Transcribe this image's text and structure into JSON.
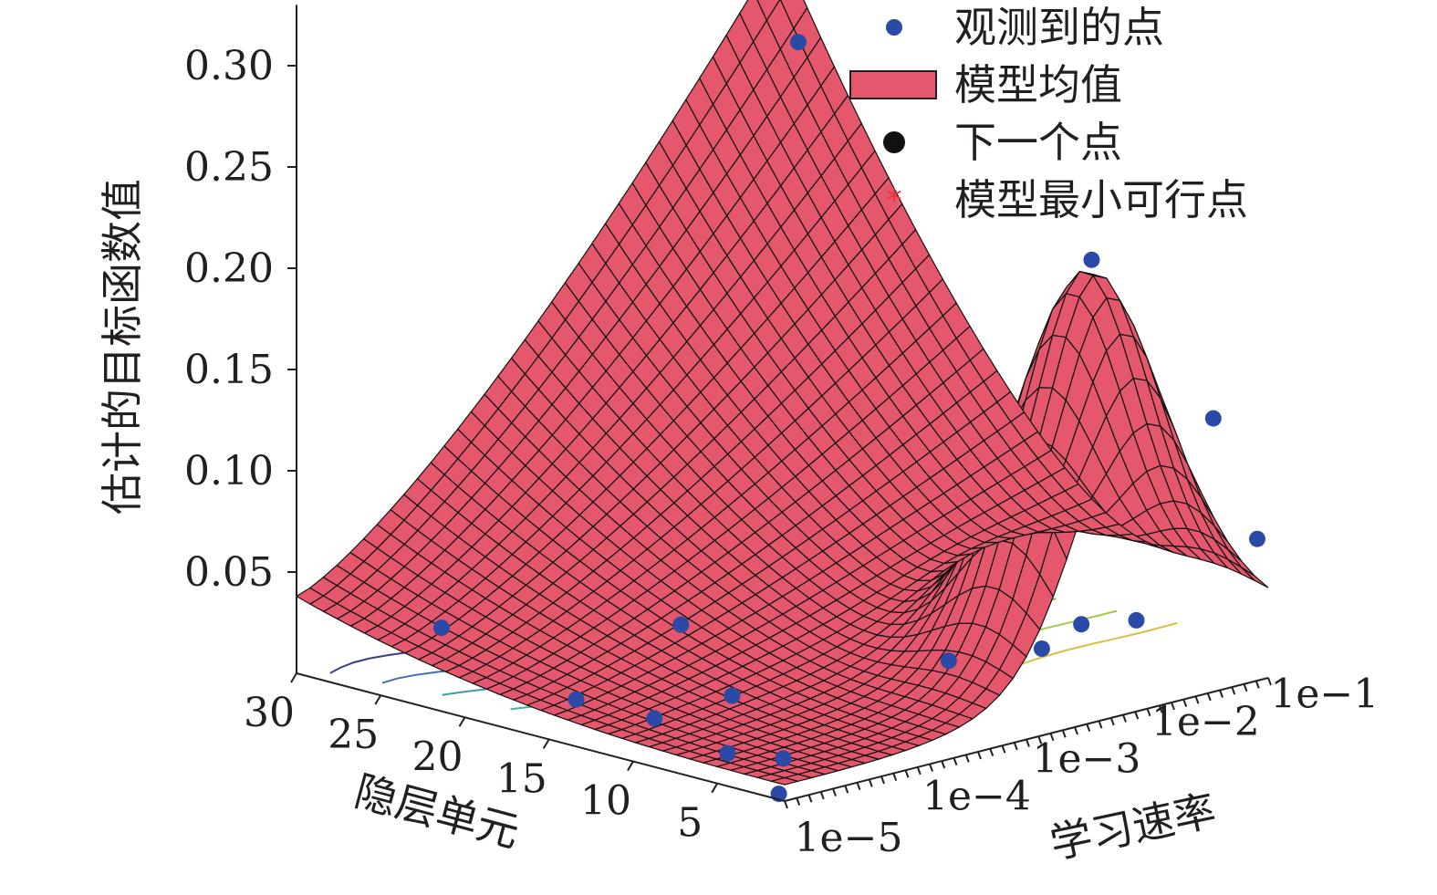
{
  "chart_data": {
    "type": "surface3d",
    "zlabel": "估计的目标函数值",
    "xlabel": "隐层单元",
    "ylabel": "学习速率",
    "z_ticks": [
      "0.05",
      "0.10",
      "0.15",
      "0.20",
      "0.25",
      "0.30"
    ],
    "z_tick_values": [
      0.05,
      0.1,
      0.15,
      0.2,
      0.25,
      0.3
    ],
    "x_ticks": [
      "30",
      "25",
      "20",
      "15",
      "10",
      "5"
    ],
    "x_tick_values": [
      30,
      25,
      20,
      15,
      10,
      5
    ],
    "y_ticks": [
      "1e−5",
      "1e−4",
      "1e−3",
      "1e−2",
      "1e−1"
    ],
    "y_tick_values": [
      -5,
      -4,
      -3,
      -2,
      -1
    ],
    "zlim": [
      0,
      0.33
    ],
    "xlim": [
      1,
      30
    ],
    "ylim": [
      -5,
      -0.6
    ],
    "legend": [
      {
        "label": "观测到的点",
        "marker": "dot",
        "color": "#2b4aa8"
      },
      {
        "label": "模型均值",
        "marker": "rect",
        "color": "#e4576c"
      },
      {
        "label": "下一个点",
        "marker": "dot",
        "color": "#111111"
      },
      {
        "label": "模型最小可行点",
        "marker": "asterisk",
        "color": "#e8343f"
      }
    ],
    "legend_position": "top-right",
    "surface_color": "#e4576c",
    "grid": false,
    "observed_points": [
      {
        "hidden": 25,
        "log_lr": -1.2,
        "value": 0.27
      },
      {
        "hidden": 3,
        "log_lr": -1.9,
        "value": 0.22
      },
      {
        "hidden": 1,
        "log_lr": -1.1,
        "value": 0.135
      },
      {
        "hidden": 1,
        "log_lr": -0.7,
        "value": 0.07
      },
      {
        "hidden": 24,
        "log_lr": -4.6,
        "value": 0.03
      },
      {
        "hidden": 15,
        "log_lr": -3.8,
        "value": 0.04
      },
      {
        "hidden": 16,
        "log_lr": -4.6,
        "value": 0.012
      },
      {
        "hidden": 12,
        "log_lr": -4.5,
        "value": 0.01
      },
      {
        "hidden": 10,
        "log_lr": -4.1,
        "value": 0.02
      },
      {
        "hidden": 7,
        "log_lr": -4.6,
        "value": 0.005
      },
      {
        "hidden": 5,
        "log_lr": -4.4,
        "value": 0.004
      },
      {
        "hidden": 3,
        "log_lr": -3.2,
        "value": 0.04
      },
      {
        "hidden": 4,
        "log_lr": -2.2,
        "value": 0.03
      },
      {
        "hidden": 1,
        "log_lr": -2.3,
        "value": 0.05
      },
      {
        "hidden": 1,
        "log_lr": -1.8,
        "value": 0.045
      },
      {
        "hidden": 2,
        "log_lr": -4.9,
        "value": 0.0
      }
    ],
    "contour_colors": [
      "#3b3b8f",
      "#3f6fb4",
      "#3f9ab8",
      "#3fb59c",
      "#6cc46a",
      "#a9c84a",
      "#d8c13f"
    ]
  }
}
